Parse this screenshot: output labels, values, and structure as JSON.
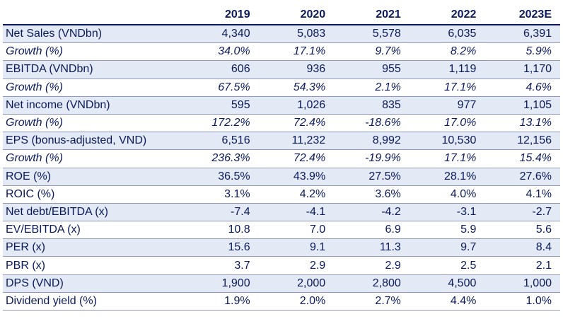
{
  "header": [
    "",
    "2019",
    "2020",
    "2021",
    "2022",
    "2023E"
  ],
  "rows": [
    {
      "label": "Net Sales (VNDbn)",
      "values": [
        "4,340",
        "5,083",
        "5,578",
        "6,035",
        "6,391"
      ],
      "italic": false
    },
    {
      "label": "Growth (%)",
      "values": [
        "34.0%",
        "17.1%",
        "9.7%",
        "8.2%",
        "5.9%"
      ],
      "italic": true
    },
    {
      "label": "EBITDA (VNDbn)",
      "values": [
        "606",
        "936",
        "955",
        "1,119",
        "1,170"
      ],
      "italic": false
    },
    {
      "label": "Growth (%)",
      "values": [
        "67.5%",
        "54.3%",
        "2.1%",
        "17.1%",
        "4.6%"
      ],
      "italic": true
    },
    {
      "label": "Net income (VNDbn)",
      "values": [
        "595",
        "1,026",
        "835",
        "977",
        "1,105"
      ],
      "italic": false
    },
    {
      "label": "Growth (%)",
      "values": [
        "172.2%",
        "72.4%",
        "-18.6%",
        "17.0%",
        "13.1%"
      ],
      "italic": true
    },
    {
      "label": "EPS (bonus-adjusted, VND)",
      "values": [
        "6,516",
        "11,232",
        "8,992",
        "10,530",
        "12,156"
      ],
      "italic": false
    },
    {
      "label": "Growth (%)",
      "values": [
        "236.3%",
        "72.4%",
        "-19.9%",
        "17.1%",
        "15.4%"
      ],
      "italic": true
    },
    {
      "label": "ROE (%)",
      "values": [
        "36.5%",
        "43.9%",
        "27.5%",
        "28.1%",
        "27.6%"
      ],
      "italic": false
    },
    {
      "label": "ROIC (%)",
      "values": [
        "3.1%",
        "4.2%",
        "3.6%",
        "4.0%",
        "4.1%"
      ],
      "italic": false
    },
    {
      "label": "Net debt/EBITDA (x)",
      "values": [
        "-7.4",
        "-4.1",
        "-4.2",
        "-3.1",
        "-2.7"
      ],
      "italic": false
    },
    {
      "label": "EV/EBITDA (x)",
      "values": [
        "10.8",
        "7.0",
        "6.9",
        "5.9",
        "5.6"
      ],
      "italic": false
    },
    {
      "label": "PER (x)",
      "values": [
        "15.6",
        "9.1",
        "11.3",
        "9.7",
        "8.4"
      ],
      "italic": false
    },
    {
      "label": "PBR (x)",
      "values": [
        "3.7",
        "2.9",
        "2.9",
        "2.5",
        "2.1"
      ],
      "italic": false
    },
    {
      "label": "DPS (VND)",
      "values": [
        "1,900",
        "2,000",
        "2,800",
        "4,500",
        "1,000"
      ],
      "italic": false
    },
    {
      "label": "Dividend yield (%)",
      "values": [
        "1.9%",
        "2.0%",
        "2.7%",
        "4.4%",
        "1.0%"
      ],
      "italic": false
    }
  ],
  "colors": {
    "text": "#0a1a5c",
    "shade": "#e3e9f5",
    "rule": "#8e9ab8"
  }
}
